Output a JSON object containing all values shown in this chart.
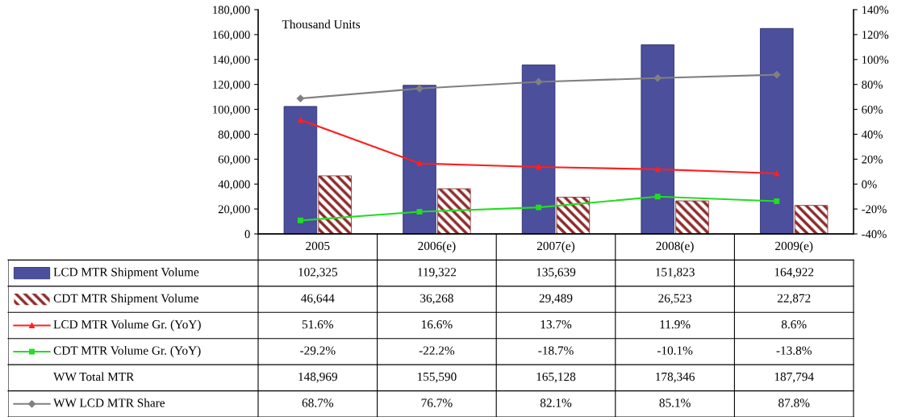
{
  "chart_data": {
    "type": "bar",
    "categories": [
      "2005",
      "2006(e)",
      "2007(e)",
      "2008(e)",
      "2009(e)"
    ],
    "series": [
      {
        "name": "LCD MTR Shipment Volume",
        "color": "#4b4f9c",
        "values": [
          102325,
          119322,
          135639,
          151823,
          164922
        ],
        "value_labels": [
          "102,325",
          "119,322",
          "135,639",
          "151,823",
          "164,922"
        ]
      },
      {
        "name": "CDT MTR Shipment Volume",
        "color": "#8b2a2a",
        "values": [
          46644,
          36268,
          29489,
          26523,
          22872
        ],
        "value_labels": [
          "46,644",
          "36,268",
          "29,489",
          "26,523",
          "22,872"
        ]
      },
      {
        "name": "LCD MTR Volume Gr. (YoY)",
        "type": "line",
        "axis": "y2",
        "color": "#ff2020",
        "marker": "triangle",
        "values": [
          51.6,
          16.6,
          13.7,
          11.9,
          8.6
        ],
        "value_labels": [
          "51.6%",
          "16.6%",
          "13.7%",
          "11.9%",
          "8.6%"
        ]
      },
      {
        "name": "CDT MTR Volume Gr. (YoY)",
        "type": "line",
        "axis": "y2",
        "color": "#22dd22",
        "marker": "square",
        "values": [
          -29.2,
          -22.2,
          -18.7,
          -10.1,
          -13.8
        ],
        "value_labels": [
          "-29.2%",
          "-22.2%",
          "-18.7%",
          "-10.1%",
          "-13.8%"
        ]
      },
      {
        "name": "WW LCD MTR Share",
        "type": "line",
        "axis": "y2",
        "color": "#808080",
        "marker": "diamond",
        "values": [
          68.7,
          76.7,
          82.1,
          85.1,
          87.8
        ],
        "value_labels": [
          "68.7%",
          "76.7%",
          "82.1%",
          "85.1%",
          "87.8%"
        ]
      }
    ],
    "ylim": [
      0,
      180000
    ],
    "yticks": [
      0,
      {
        "value": 20000,
        "label": "20,000"
      },
      {
        "value": 40000,
        "label": "40,000"
      },
      {
        "value": 60000,
        "label": "60,000"
      },
      {
        "value": 80000,
        "label": "80,000"
      },
      {
        "value": 100000,
        "label": "100,000"
      },
      {
        "value": 120000,
        "label": "120,000"
      },
      {
        "value": 140000,
        "label": "140,000"
      },
      {
        "value": 160000,
        "label": "160,000"
      },
      {
        "value": 180000,
        "label": "180,000"
      }
    ],
    "y2lim": [
      -40,
      140
    ],
    "y2ticks": [
      {
        "value": -40,
        "label": "-40%"
      },
      {
        "value": -20,
        "label": "-20%"
      },
      {
        "value": 0,
        "label": "0%"
      },
      {
        "value": 20,
        "label": "20%"
      },
      {
        "value": 40,
        "label": "40%"
      },
      {
        "value": 60,
        "label": "60%"
      },
      {
        "value": 80,
        "label": "80%"
      },
      {
        "value": 100,
        "label": "100%"
      },
      {
        "value": 120,
        "label": "120%"
      },
      {
        "value": 140,
        "label": "140%"
      }
    ],
    "annotations": [
      "Thousand Units",
      "WW Total MTR",
      "148,969",
      "155,590",
      "165,128",
      "178,346",
      "187,794"
    ],
    "grid": false,
    "legend": "bottom"
  }
}
